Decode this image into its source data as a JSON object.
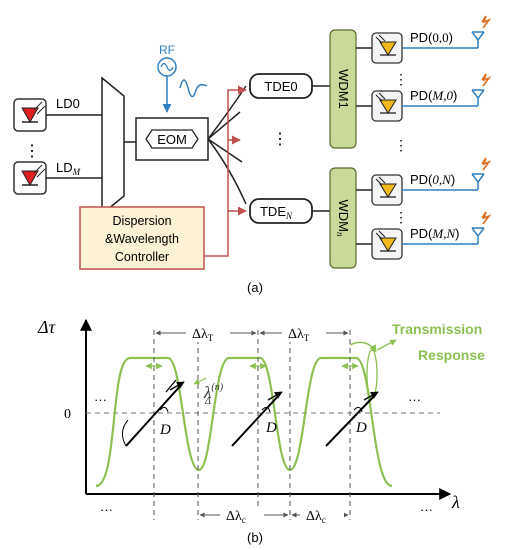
{
  "part_a": {
    "caption": "(a)",
    "laser_diodes": [
      {
        "label": "LD0",
        "sub": ""
      },
      {
        "label": "LD",
        "sub": "M"
      }
    ],
    "rf_label": "RF",
    "modulator_label": "EOM",
    "tde_blocks": [
      {
        "label": "TDE0",
        "sub": ""
      },
      {
        "label": "TDE",
        "sub": "N"
      }
    ],
    "controller_lines": [
      "Dispersion",
      "&Wavelength",
      "Controller"
    ],
    "wdm_blocks": [
      {
        "label": "WDM1",
        "sub": ""
      },
      {
        "label": "WDM",
        "sub": "n"
      }
    ],
    "photodiodes": [
      {
        "pre": "PD(",
        "idx": "0,0",
        "post": ")"
      },
      {
        "pre": "PD(",
        "idx": "M,0",
        "post": ")"
      },
      {
        "pre": "PD(",
        "idx": "0,N",
        "post": ")"
      },
      {
        "pre": "PD(",
        "idx": "M,N",
        "post": ")"
      }
    ],
    "ellipsis": "⋮",
    "colors": {
      "laser": "#e02020",
      "photodiode": "#f0b81c",
      "feed_line": "#2f7fc1",
      "control_line": "#c0504d",
      "controller_fill": "#fdf1d6",
      "controller_border": "#c0504d",
      "wdm_fill": "#c9d99a",
      "antenna": "#2f7fc1",
      "spark": "#e07020"
    }
  },
  "part_b": {
    "caption": "(b)",
    "y_axis_label": "Δτ",
    "x_axis_label": "λ",
    "zero_label": "0",
    "transmission_label_lines": [
      "Transmission",
      "Response"
    ],
    "transmission_color": "#8cc152",
    "top_spacing_label": "Δλ",
    "top_spacing_sub": "T",
    "bottom_spacing_label": "Δλ",
    "bottom_spacing_sub": "c",
    "slope_label": "D",
    "center_label": "λ",
    "center_sup": "(n)",
    "center_sub": "Δ",
    "dots": "···"
  }
}
